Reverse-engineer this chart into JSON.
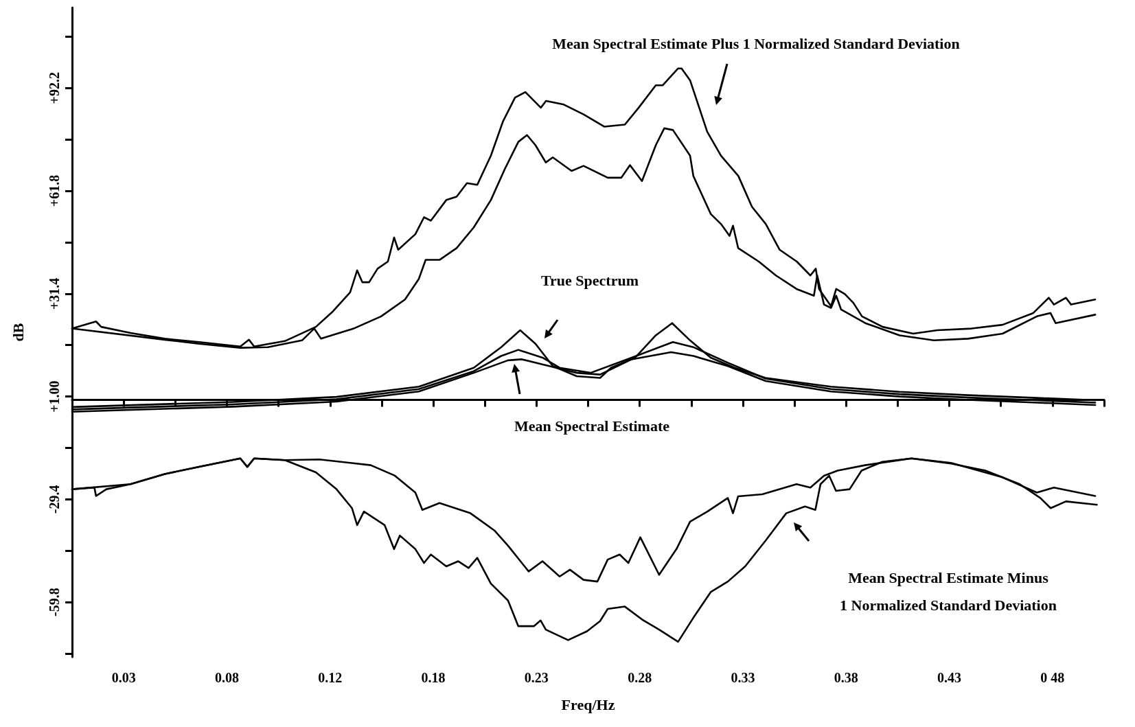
{
  "chart_data": {
    "type": "line",
    "xlabel": "Freq/Hz",
    "ylabel": "dB",
    "marker": "none",
    "xlim": [
      0,
      0.5
    ],
    "ylim": [
      -76,
      116
    ],
    "xticks": [
      {
        "value": 0.025,
        "label": "0.03"
      },
      {
        "value": 0.05,
        "label": null
      },
      {
        "value": 0.075,
        "label": "0.08"
      },
      {
        "value": 0.1,
        "label": null
      },
      {
        "value": 0.125,
        "label": "0.12"
      },
      {
        "value": 0.15,
        "label": null
      },
      {
        "value": 0.175,
        "label": "0.18"
      },
      {
        "value": 0.2,
        "label": null
      },
      {
        "value": 0.225,
        "label": "0.23"
      },
      {
        "value": 0.25,
        "label": null
      },
      {
        "value": 0.275,
        "label": "0.28"
      },
      {
        "value": 0.3,
        "label": null
      },
      {
        "value": 0.325,
        "label": "0.33"
      },
      {
        "value": 0.35,
        "label": null
      },
      {
        "value": 0.375,
        "label": "0.38"
      },
      {
        "value": 0.4,
        "label": null
      },
      {
        "value": 0.425,
        "label": "0.43"
      },
      {
        "value": 0.45,
        "label": null
      },
      {
        "value": 0.475,
        "label": "0 48"
      },
      {
        "value": 0.5,
        "label": null
      }
    ],
    "yticks": [
      {
        "value": -75,
        "label": null
      },
      {
        "value": -59.8,
        "label": "-59.8"
      },
      {
        "value": -44.6,
        "label": null
      },
      {
        "value": -29.4,
        "label": "-29.4"
      },
      {
        "value": -14.2,
        "label": null
      },
      {
        "value": 1,
        "label": "+1.00"
      },
      {
        "value": 16.2,
        "label": null
      },
      {
        "value": 31.4,
        "label": "+31.4"
      },
      {
        "value": 46.6,
        "label": null
      },
      {
        "value": 61.8,
        "label": "+61.8"
      },
      {
        "value": 77,
        "label": null
      },
      {
        "value": 92.2,
        "label": "+92.2"
      },
      {
        "value": 107.4,
        "label": null
      }
    ],
    "annotations": [
      "Mean Spectral Estimate Plus 1 Normalized Standard Deviation",
      "True Spectrum",
      "Mean Spectral Estimate",
      "Mean Spectral Estimate Minus\n1 Normalized Standard Deviation"
    ],
    "series": [
      {
        "color": "#000000",
        "x": [
          0,
          0.0116,
          0.0141,
          0.0283,
          0.0449,
          0.0615,
          0.0815,
          0.0857,
          0.0882,
          0.1031,
          0.1181,
          0.1264,
          0.1347,
          0.1381,
          0.1406,
          0.1439,
          0.148,
          0.153,
          0.156,
          0.158,
          0.1663,
          0.1705,
          0.1738,
          0.1813,
          0.1863,
          0.1913,
          0.1963,
          0.2029,
          0.2088,
          0.2146,
          0.2196,
          0.2271,
          0.2296,
          0.2379,
          0.2478,
          0.2578,
          0.2678,
          0.2745,
          0.2828,
          0.2861,
          0.2936,
          0.2953,
          0.2994,
          0.3077,
          0.3144,
          0.3228,
          0.3294,
          0.3361,
          0.3428,
          0.3511,
          0.3577,
          0.3603,
          0.3619,
          0.3677,
          0.3702,
          0.3744,
          0.3785,
          0.3827,
          0.3927,
          0.4075,
          0.4192,
          0.4358,
          0.4508,
          0.4657,
          0.4732,
          0.4757,
          0.4815,
          0.484,
          0.4957
        ],
        "values": [
          21.1,
          23.2,
          21.6,
          19.8,
          18.1,
          17.1,
          15.8,
          17.8,
          15.8,
          17.4,
          21.6,
          26.2,
          31.8,
          38.3,
          34.8,
          34.8,
          38.8,
          40.9,
          48.0,
          44.4,
          49.0,
          54.0,
          53.0,
          59.1,
          60.1,
          64.1,
          63.6,
          72.2,
          82.4,
          89.4,
          91.0,
          86.4,
          88.4,
          87.4,
          84.4,
          80.8,
          81.4,
          86.4,
          93.0,
          93.0,
          98.0,
          98.0,
          94.5,
          79.3,
          72.2,
          66.2,
          57.1,
          52.0,
          44.4,
          40.9,
          36.8,
          38.8,
          32.8,
          27.7,
          32.8,
          31.3,
          28.7,
          24.7,
          21.6,
          19.6,
          20.6,
          21.1,
          22.2,
          25.7,
          30.2,
          28.2,
          30.2,
          28.2,
          29.7
        ]
      },
      {
        "color": "#000000",
        "x": [
          0,
          0.0449,
          0.0615,
          0.0815,
          0.0948,
          0.1114,
          0.1173,
          0.1206,
          0.1364,
          0.1497,
          0.1613,
          0.168,
          0.1713,
          0.178,
          0.1863,
          0.1946,
          0.2029,
          0.2096,
          0.2162,
          0.2204,
          0.2245,
          0.2295,
          0.2329,
          0.242,
          0.2478,
          0.2595,
          0.2661,
          0.2703,
          0.2761,
          0.2828,
          0.2869,
          0.2911,
          0.2994,
          0.301,
          0.3094,
          0.3144,
          0.3185,
          0.3202,
          0.3227,
          0.3327,
          0.341,
          0.351,
          0.3594,
          0.361,
          0.3643,
          0.3677,
          0.3702,
          0.3726,
          0.3843,
          0.4009,
          0.4175,
          0.4341,
          0.4508,
          0.4674,
          0.474,
          0.4765,
          0.4957
        ],
        "values": [
          21.1,
          17.8,
          16.6,
          15.4,
          15.6,
          17.6,
          21.1,
          18.1,
          21.1,
          24.7,
          29.7,
          35.8,
          41.4,
          41.4,
          44.9,
          51.0,
          59.1,
          68.2,
          76.3,
          78.3,
          75.3,
          70.2,
          71.7,
          67.7,
          69.2,
          65.7,
          65.7,
          69.4,
          64.7,
          75.3,
          80.3,
          79.8,
          72.2,
          66.2,
          55.0,
          52.0,
          48.5,
          51.5,
          44.9,
          40.9,
          36.8,
          32.8,
          30.8,
          36.8,
          28.2,
          27.2,
          30.8,
          26.7,
          22.7,
          19.1,
          17.6,
          18.1,
          19.6,
          24.7,
          25.7,
          22.7,
          25.2
        ]
      },
      {
        "color": "#000000",
        "x": [
          0,
          0.0782,
          0.1281,
          0.168,
          0.1946,
          0.2079,
          0.2171,
          0.2245,
          0.2329,
          0.2445,
          0.2558,
          0.2611,
          0.2728,
          0.2828,
          0.2907,
          0.2994,
          0.3094,
          0.321,
          0.336,
          0.3676,
          0.4009,
          0.4341,
          0.4674,
          0.4957
        ],
        "values": [
          -2.1,
          -0.6,
          0.9,
          3.9,
          9.5,
          15.6,
          20.6,
          16.6,
          10.0,
          7.0,
          6.5,
          9.5,
          12.5,
          19.1,
          22.7,
          17.6,
          12.5,
          9.5,
          6.5,
          3.9,
          2.4,
          1.4,
          0.6,
          -0.1
        ]
      },
      {
        "color": "#000000",
        "x": [
          0,
          0.0782,
          0.1281,
          0.168,
          0.1946,
          0.2079,
          0.2162,
          0.2279,
          0.2362,
          0.2512,
          0.2711,
          0.2911,
          0.301,
          0.3177,
          0.336,
          0.3676,
          0.4009,
          0.4341,
          0.4674,
          0.4957
        ],
        "values": [
          -2.8,
          -1.3,
          0.2,
          3.2,
          8.5,
          13.0,
          14.8,
          12.5,
          9.5,
          8.0,
          12.5,
          17.1,
          15.6,
          11.0,
          6.3,
          3.2,
          1.7,
          0.7,
          -0.1,
          -0.8
        ]
      },
      {
        "color": "#000000",
        "x": [
          0,
          0.0782,
          0.1281,
          0.168,
          0.1946,
          0.2112,
          0.2179,
          0.2312,
          0.2445,
          0.2558,
          0.2711,
          0.2902,
          0.301,
          0.3177,
          0.336,
          0.3676,
          0.4009,
          0.4341,
          0.4674,
          0.4957
        ],
        "values": [
          -3.5,
          -2.0,
          -0.5,
          2.5,
          8.0,
          11.7,
          12.0,
          10.0,
          8.0,
          7.5,
          12.0,
          14.1,
          13.0,
          10.0,
          5.6,
          2.5,
          1.0,
          0.0,
          -0.8,
          -1.5
        ]
      },
      {
        "color": "#000000",
        "x": [
          0,
          0.0108,
          0.0116,
          0.0166,
          0.0283,
          0.0449,
          0.0615,
          0.0815,
          0.0849,
          0.0882,
          0.1031,
          0.1181,
          0.1281,
          0.1356,
          0.1381,
          0.1414,
          0.1514,
          0.156,
          0.1588,
          0.1663,
          0.1705,
          0.1738,
          0.1813,
          0.1871,
          0.1921,
          0.1963,
          0.2029,
          0.2112,
          0.2162,
          0.2237,
          0.227,
          0.2295,
          0.2403,
          0.2495,
          0.2558,
          0.2595,
          0.2678,
          0.2761,
          0.2844,
          0.2936,
          0.301,
          0.3094,
          0.3177,
          0.3261,
          0.336,
          0.346,
          0.3551,
          0.3601,
          0.3626,
          0.3668,
          0.3701,
          0.3767,
          0.3825,
          0.3925,
          0.4067,
          0.4258,
          0.4425,
          0.4591,
          0.4691,
          0.4741,
          0.4815,
          0.4965
        ],
        "values": [
          -26.4,
          -25.9,
          -28.4,
          -26.4,
          -24.9,
          -21.9,
          -19.8,
          -17.3,
          -19.8,
          -17.3,
          -17.8,
          -21.4,
          -26.4,
          -32.0,
          -37.0,
          -33.0,
          -37.0,
          -44.1,
          -40.1,
          -44.1,
          -48.2,
          -45.7,
          -49.2,
          -47.7,
          -49.7,
          -46.7,
          -54.3,
          -59.3,
          -66.9,
          -66.9,
          -65.2,
          -67.9,
          -71.0,
          -68.4,
          -65.4,
          -61.8,
          -61.1,
          -64.9,
          -67.9,
          -71.5,
          -64.4,
          -56.8,
          -53.7,
          -49.2,
          -41.6,
          -33.5,
          -31.5,
          -32.5,
          -24.9,
          -22.4,
          -26.9,
          -26.4,
          -20.9,
          -18.3,
          -17.3,
          -18.8,
          -20.9,
          -24.9,
          -29.0,
          -32.0,
          -30.0,
          -31.0
        ]
      },
      {
        "color": "#000000",
        "x": [
          0,
          0.0283,
          0.0449,
          0.0615,
          0.0815,
          0.0849,
          0.0882,
          0.1031,
          0.1198,
          0.1447,
          0.1564,
          0.1663,
          0.1697,
          0.178,
          0.193,
          0.2046,
          0.2112,
          0.2212,
          0.2279,
          0.2362,
          0.2412,
          0.2478,
          0.2545,
          0.2595,
          0.2653,
          0.2695,
          0.2753,
          0.2844,
          0.2928,
          0.2994,
          0.3078,
          0.3177,
          0.3202,
          0.3227,
          0.3344,
          0.351,
          0.3577,
          0.3643,
          0.3709,
          0.3842,
          0.4067,
          0.4258,
          0.4508,
          0.4674,
          0.4757,
          0.4957
        ],
        "values": [
          -26.4,
          -24.9,
          -21.9,
          -19.8,
          -17.3,
          -19.8,
          -17.3,
          -17.8,
          -17.6,
          -19.3,
          -22.4,
          -27.4,
          -32.5,
          -30.5,
          -33.5,
          -38.6,
          -43.1,
          -50.7,
          -47.7,
          -52.2,
          -50.2,
          -53.2,
          -53.7,
          -47.2,
          -45.7,
          -48.2,
          -40.6,
          -51.7,
          -44.1,
          -36.0,
          -33.0,
          -29.0,
          -33.5,
          -28.5,
          -27.9,
          -24.9,
          -25.9,
          -22.4,
          -20.9,
          -19.3,
          -17.3,
          -18.6,
          -22.9,
          -27.4,
          -25.9,
          -28.4
        ]
      }
    ]
  }
}
